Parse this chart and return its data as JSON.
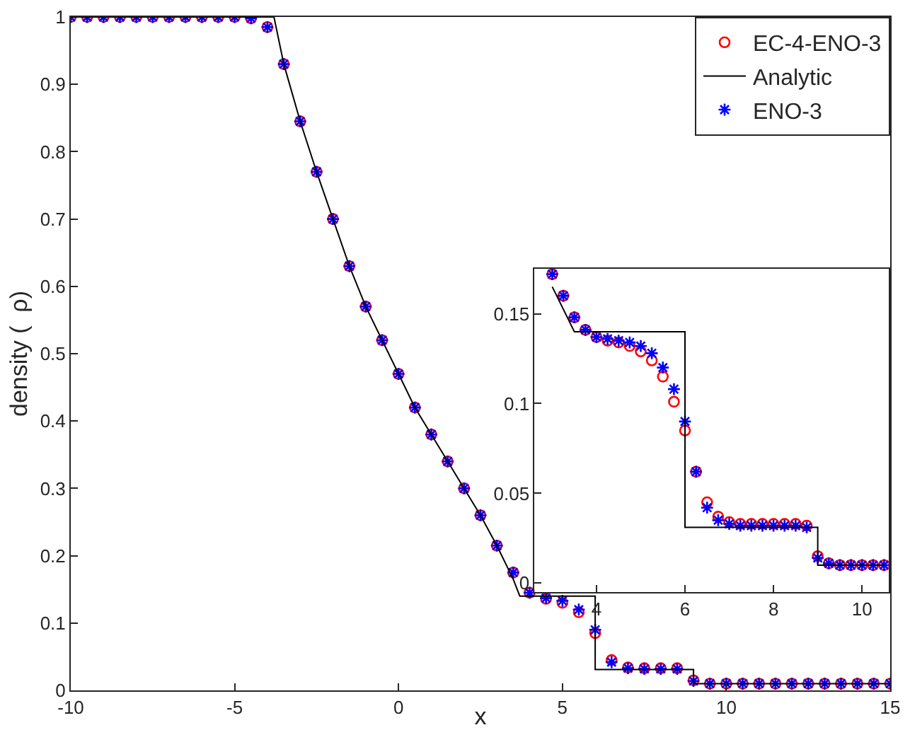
{
  "chart_data": [
    {
      "type": "scatter",
      "xlabel": "x",
      "ylabel": "density (  ρ)",
      "xlim": [
        -10,
        15
      ],
      "xticks": [
        -10,
        -5,
        0,
        5,
        10,
        15
      ],
      "ylim": [
        0,
        1
      ],
      "yticks": [
        0,
        0.1,
        0.2,
        0.3,
        0.4,
        0.5,
        0.6,
        0.7,
        0.8,
        0.9,
        1
      ],
      "legend": "top right",
      "x": [
        -10,
        -9.5,
        -9,
        -8.5,
        -8,
        -7.5,
        -7,
        -6.5,
        -6,
        -5.5,
        -5,
        -4.5,
        -4,
        -3.5,
        -3,
        -2.5,
        -2,
        -1.5,
        -1,
        -0.5,
        0,
        0.5,
        1,
        1.5,
        2,
        2.5,
        3,
        3.5,
        4,
        4.5,
        5,
        5.5,
        6,
        6.5,
        7,
        7.5,
        8,
        8.5,
        9,
        9.5,
        10,
        10.5,
        11,
        11.5,
        12,
        12.5,
        13,
        13.5,
        14,
        14.5,
        15
      ],
      "series": [
        {
          "name": "EC-4-ENO-3",
          "marker": "circle",
          "color": "#ff0000",
          "values": [
            1,
            1,
            1,
            1,
            1,
            1,
            1,
            1,
            1,
            1,
            1,
            0.998,
            0.985,
            0.93,
            0.845,
            0.77,
            0.7,
            0.63,
            0.57,
            0.52,
            0.47,
            0.42,
            0.38,
            0.34,
            0.3,
            0.26,
            0.215,
            0.175,
            0.145,
            0.136,
            0.13,
            0.116,
            0.085,
            0.045,
            0.034,
            0.033,
            0.033,
            0.033,
            0.015,
            0.01,
            0.01,
            0.01,
            0.01,
            0.01,
            0.01,
            0.01,
            0.01,
            0.01,
            0.01,
            0.01,
            0.01
          ]
        },
        {
          "name": "Analytic",
          "type": "line",
          "marker": "none",
          "color": "#000000",
          "x": [
            -10,
            -3.8,
            -3.5,
            -3,
            -2.5,
            -2,
            -1.5,
            -1,
            -0.5,
            0,
            0.5,
            1,
            1.5,
            2,
            2.5,
            3,
            3.5,
            3.7,
            6,
            6,
            9,
            9,
            15
          ],
          "values": [
            1,
            1,
            0.93,
            0.845,
            0.77,
            0.7,
            0.63,
            0.57,
            0.52,
            0.47,
            0.42,
            0.38,
            0.34,
            0.3,
            0.26,
            0.215,
            0.165,
            0.14,
            0.14,
            0.031,
            0.031,
            0.01,
            0.01
          ]
        },
        {
          "name": "ENO-3",
          "marker": "cross",
          "color": "#0000ff",
          "values": [
            1,
            1,
            1,
            1,
            1,
            1,
            1,
            1,
            1,
            1,
            1,
            0.998,
            0.985,
            0.93,
            0.845,
            0.77,
            0.7,
            0.63,
            0.57,
            0.52,
            0.47,
            0.42,
            0.38,
            0.34,
            0.3,
            0.26,
            0.215,
            0.175,
            0.145,
            0.137,
            0.133,
            0.12,
            0.09,
            0.042,
            0.033,
            0.032,
            0.032,
            0.032,
            0.014,
            0.01,
            0.01,
            0.01,
            0.01,
            0.01,
            0.01,
            0.01,
            0.01,
            0.01,
            0.01,
            0.01,
            0.01
          ]
        }
      ]
    },
    {
      "type": "scatter",
      "xlim": [
        2.6,
        10.6
      ],
      "xticks": [
        4,
        6,
        8,
        10
      ],
      "ylim": [
        -0.005,
        0.175
      ],
      "yticks": [
        0,
        0.05,
        0.1,
        0.15
      ],
      "x": [
        3,
        3.25,
        3.5,
        3.75,
        4,
        4.25,
        4.5,
        4.75,
        5,
        5.25,
        5.5,
        5.75,
        6,
        6.25,
        6.5,
        6.75,
        7,
        7.25,
        7.5,
        7.75,
        8,
        8.25,
        8.5,
        8.75,
        9,
        9.25,
        9.5,
        9.75,
        10,
        10.25,
        10.5
      ],
      "series": [
        {
          "marker": "circle",
          "color": "#ff0000",
          "values": [
            0.172,
            0.16,
            0.148,
            0.141,
            0.137,
            0.135,
            0.134,
            0.132,
            0.129,
            0.124,
            0.115,
            0.101,
            0.085,
            0.062,
            0.045,
            0.037,
            0.034,
            0.033,
            0.033,
            0.033,
            0.033,
            0.033,
            0.033,
            0.032,
            0.015,
            0.011,
            0.01,
            0.01,
            0.01,
            0.01,
            0.01
          ]
        },
        {
          "type": "line",
          "marker": "none",
          "color": "#000000",
          "x": [
            3,
            3.5,
            6,
            6,
            9,
            9,
            10.5
          ],
          "values": [
            0.165,
            0.14,
            0.14,
            0.031,
            0.031,
            0.01,
            0.01
          ]
        },
        {
          "marker": "cross",
          "color": "#0000ff",
          "values": [
            0.172,
            0.16,
            0.148,
            0.141,
            0.137,
            0.136,
            0.135,
            0.134,
            0.132,
            0.128,
            0.12,
            0.108,
            0.09,
            0.062,
            0.042,
            0.035,
            0.033,
            0.032,
            0.032,
            0.032,
            0.032,
            0.032,
            0.032,
            0.031,
            0.014,
            0.011,
            0.01,
            0.01,
            0.01,
            0.01,
            0.01
          ]
        }
      ]
    }
  ]
}
